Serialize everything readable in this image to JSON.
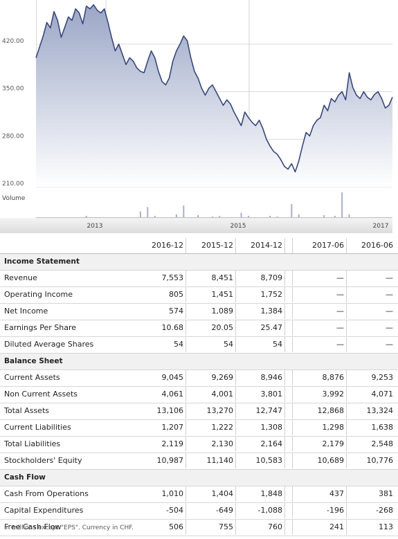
{
  "chart_data": {
    "type": "area",
    "y_ticks": [
      "420.00",
      "350.00",
      "280.00",
      "210.00"
    ],
    "ylim": [
      210,
      485
    ],
    "x_ticks": [
      "2013",
      "2015",
      "2017"
    ],
    "volume_label": "Volume",
    "price": [
      400,
      416,
      432,
      452,
      444,
      468,
      455,
      430,
      445,
      460,
      455,
      472,
      466,
      450,
      476,
      472,
      478,
      470,
      466,
      472,
      452,
      430,
      410,
      420,
      405,
      390,
      400,
      395,
      385,
      380,
      378,
      395,
      410,
      400,
      380,
      365,
      360,
      370,
      395,
      410,
      420,
      432,
      425,
      400,
      380,
      370,
      355,
      345,
      355,
      360,
      350,
      340,
      330,
      338,
      332,
      320,
      310,
      300,
      320,
      312,
      305,
      300,
      308,
      296,
      280,
      270,
      262,
      258,
      250,
      240,
      236,
      244,
      232,
      248,
      270,
      290,
      285,
      300,
      308,
      312,
      330,
      322,
      340,
      335,
      345,
      350,
      338,
      378,
      356,
      345,
      340,
      350,
      342,
      338,
      346,
      350,
      340,
      326,
      330,
      342
    ],
    "volume": [
      0,
      0,
      0,
      0,
      0,
      0,
      0,
      0,
      0,
      0,
      0,
      0,
      0,
      0,
      2,
      0,
      0,
      0,
      0,
      0,
      0,
      0,
      0,
      0,
      0,
      0,
      0,
      0,
      0,
      8,
      0,
      14,
      0,
      2,
      0,
      0,
      0,
      0,
      0,
      4,
      0,
      16,
      0,
      0,
      0,
      3,
      0,
      0,
      0,
      1,
      0,
      2,
      0,
      0,
      0,
      0,
      0,
      6,
      0,
      2,
      0,
      0,
      0,
      0,
      0,
      2,
      0,
      1,
      0,
      0,
      0,
      18,
      0,
      4,
      0,
      0,
      0,
      0,
      0,
      0,
      3,
      0,
      0,
      2,
      0,
      34,
      0,
      4,
      0,
      0,
      0,
      0,
      0,
      0,
      0,
      0,
      0,
      0,
      0,
      0
    ]
  },
  "table": {
    "columns": [
      "2016-12",
      "2015-12",
      "2014-12",
      "2017-06",
      "2016-06"
    ],
    "sections": [
      {
        "title": "Income Statement",
        "rows": [
          {
            "label": "Revenue",
            "values": [
              "7,553",
              "8,451",
              "8,709",
              "—",
              "—"
            ]
          },
          {
            "label": "Operating Income",
            "values": [
              "805",
              "1,451",
              "1,752",
              "—",
              "—"
            ]
          },
          {
            "label": "Net Income",
            "values": [
              "574",
              "1,089",
              "1,384",
              "—",
              "—"
            ]
          },
          {
            "label": "Earnings Per Share",
            "values": [
              "10.68",
              "20.05",
              "25.47",
              "—",
              "—"
            ]
          },
          {
            "label": "Diluted Average Shares",
            "values": [
              "54",
              "54",
              "54",
              "—",
              "—"
            ]
          }
        ]
      },
      {
        "title": "Balance Sheet",
        "rows": [
          {
            "label": "Current Assets",
            "values": [
              "9,045",
              "9,269",
              "8,946",
              "8,876",
              "9,253"
            ]
          },
          {
            "label": "Non Current Assets",
            "values": [
              "4,061",
              "4,001",
              "3,801",
              "3,992",
              "4,071"
            ]
          },
          {
            "label": "Total Assets",
            "values": [
              "13,106",
              "13,270",
              "12,747",
              "12,868",
              "13,324"
            ]
          },
          {
            "label": "Current Liabilities",
            "values": [
              "1,207",
              "1,222",
              "1,308",
              "1,298",
              "1,638"
            ]
          },
          {
            "label": "Total Liabilities",
            "values": [
              "2,119",
              "2,130",
              "2,164",
              "2,179",
              "2,548"
            ]
          },
          {
            "label": "Stockholders' Equity",
            "values": [
              "10,987",
              "11,140",
              "10,583",
              "10,689",
              "10,776"
            ]
          }
        ]
      },
      {
        "title": "Cash Flow",
        "rows": [
          {
            "label": "Cash From Operations",
            "values": [
              "1,010",
              "1,404",
              "1,848",
              "437",
              "381"
            ]
          },
          {
            "label": "Capital Expenditures",
            "values": [
              "-504",
              "-649",
              "-1,088",
              "-196",
              "-268"
            ]
          },
          {
            "label": "Free Cash Flow",
            "values": [
              "506",
              "755",
              "760",
              "241",
              "113"
            ]
          }
        ]
      }
    ]
  },
  "footnote": "In millions except \"EPS\". Currency in CHF."
}
